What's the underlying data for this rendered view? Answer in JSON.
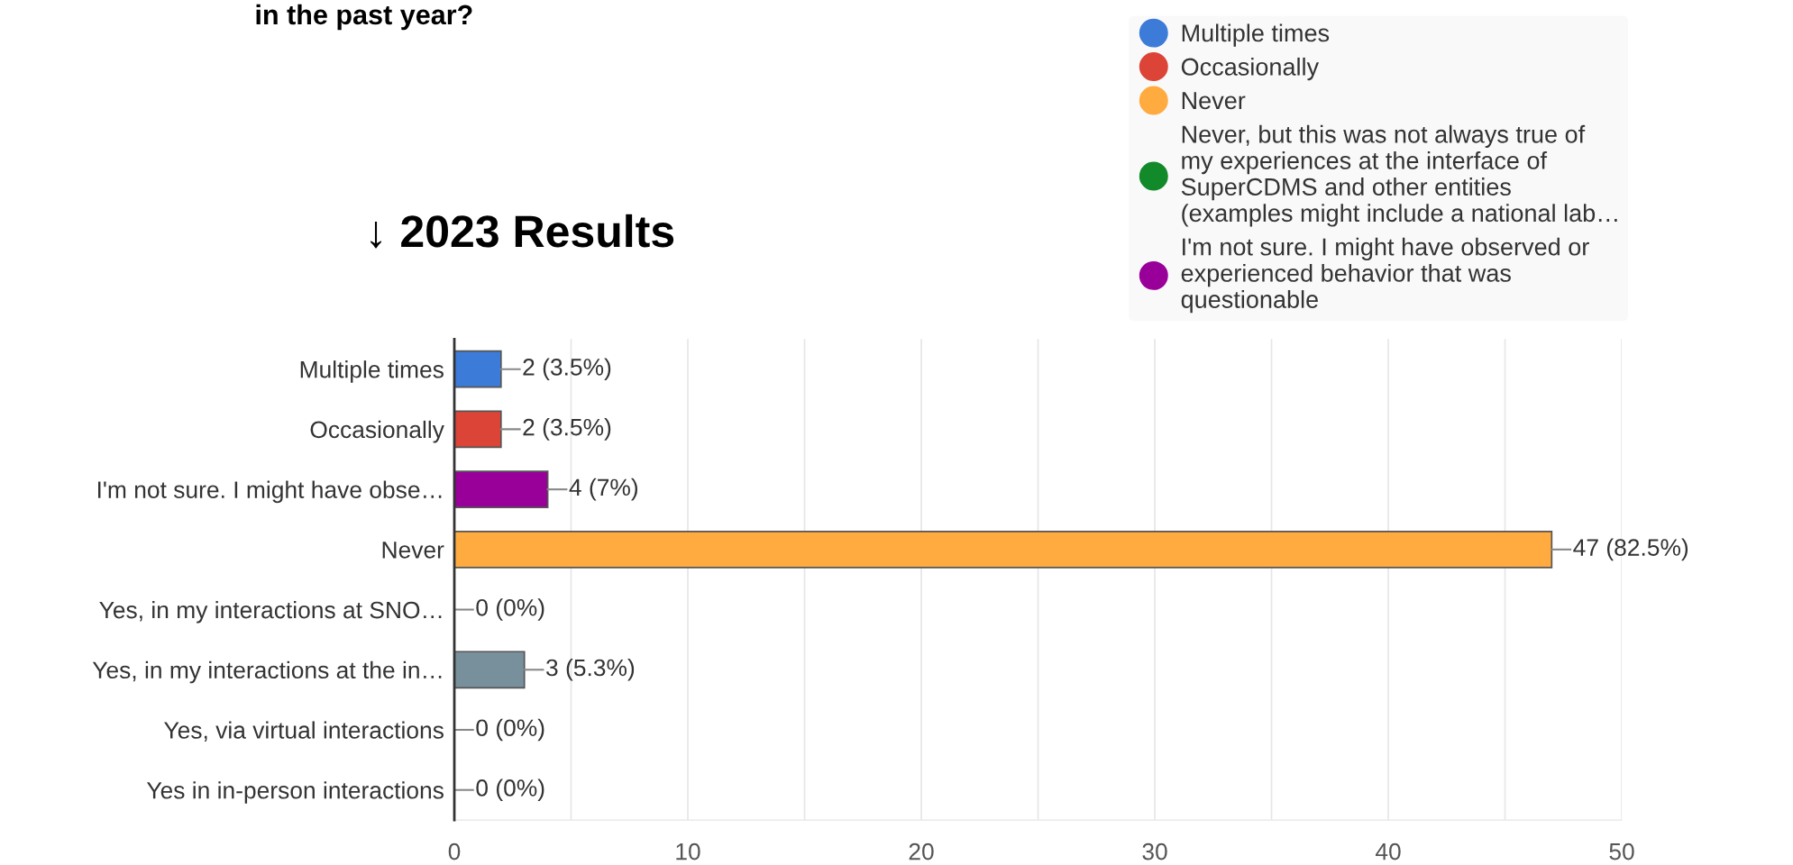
{
  "chart_data": {
    "type": "bar",
    "orientation": "horizontal",
    "title": "in the past year?",
    "subtitle": "↓ 2023 Results",
    "categories": [
      "Multiple times",
      "Occasionally",
      "I'm not sure. I might have obse…",
      "Never",
      "Yes, in my interactions at SNO…",
      "Yes, in my interactions at the in…",
      "Yes, via virtual interactions",
      "Yes in in-person interactions"
    ],
    "series": [
      {
        "name": "Multiple times",
        "color": "#3d7bd9",
        "values": [
          2,
          null,
          null,
          null,
          null,
          null,
          null,
          null
        ]
      },
      {
        "name": "Occasionally",
        "color": "#dc4437",
        "values": [
          null,
          2,
          null,
          null,
          null,
          null,
          null,
          null
        ]
      },
      {
        "name": "Never",
        "color": "#ffab40",
        "values": [
          null,
          null,
          null,
          47,
          null,
          null,
          null,
          null
        ]
      },
      {
        "name": "Never, but this was not always true of\nmy experiences at the interface of\nSuperCDMS and other entities\n(examples might include a national lab…",
        "color": "#128a2a",
        "values": [
          null,
          null,
          null,
          null,
          null,
          null,
          null,
          null
        ]
      },
      {
        "name": "I'm not sure. I might have observed or\nexperienced behavior that was\nquestionable",
        "color": "#990099",
        "values": [
          null,
          null,
          4,
          null,
          null,
          null,
          null,
          null
        ]
      },
      {
        "color": "#78909c",
        "values": [
          null,
          null,
          null,
          null,
          0,
          3,
          0,
          0
        ]
      }
    ],
    "value_labels": [
      "2 (3.5%)",
      "2 (3.5%)",
      "4 (7%)",
      "47 (82.5%)",
      "0 (0%)",
      "3 (5.3%)",
      "0 (0%)",
      "0 (0%)"
    ],
    "xlim": [
      0,
      50
    ],
    "xticks": [
      0,
      {
        "value": 5,
        "label": null
      },
      10,
      {
        "value": 15,
        "label": null
      },
      20,
      {
        "value": 25,
        "label": null
      },
      30,
      {
        "value": 35,
        "label": null
      },
      40,
      {
        "value": 45,
        "label": null
      },
      50
    ],
    "grid": "x",
    "legend": "top right"
  }
}
